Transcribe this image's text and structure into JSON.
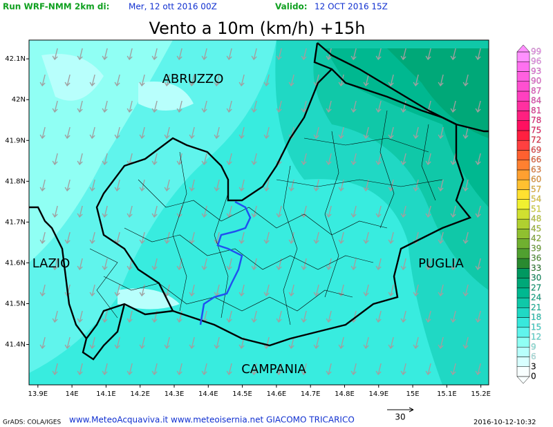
{
  "header": {
    "run_label": "Run WRF-NMM 2km di:",
    "run_date": "Mer, 12 ott 2016 00Z",
    "valid_label": "Valido:",
    "valid_date": "12 OCT 2016 15Z"
  },
  "title": "Vento a 10m (km/h) +15h",
  "map": {
    "lonlim": [
      13.874,
      15.223
    ],
    "latlim": [
      41.301,
      42.146
    ],
    "xticks": [
      {
        "value": 13.9,
        "label": "13.9E"
      },
      {
        "value": 14,
        "label": "14E"
      },
      {
        "value": 14.1,
        "label": "14.1E"
      },
      {
        "value": 14.2,
        "label": "14.2E"
      },
      {
        "value": 14.3,
        "label": "14.3E"
      },
      {
        "value": 14.4,
        "label": "14.4E"
      },
      {
        "value": 14.5,
        "label": "14.5E"
      },
      {
        "value": 14.6,
        "label": "14.6E"
      },
      {
        "value": 14.7,
        "label": "14.7E"
      },
      {
        "value": 14.8,
        "label": "14.8E"
      },
      {
        "value": 14.9,
        "label": "14.9E"
      },
      {
        "value": 15,
        "label": "15E"
      },
      {
        "value": 15.1,
        "label": "15.1E"
      },
      {
        "value": 15.2,
        "label": "15.2E"
      }
    ],
    "yticks": [
      {
        "value": 42.1,
        "label": "42.1N"
      },
      {
        "value": 42,
        "label": "42N"
      },
      {
        "value": 41.9,
        "label": "41.9N"
      },
      {
        "value": 41.8,
        "label": "41.8N"
      },
      {
        "value": 41.7,
        "label": "41.7N"
      },
      {
        "value": 41.6,
        "label": "41.6N"
      },
      {
        "value": 41.5,
        "label": "41.5N"
      },
      {
        "value": 41.4,
        "label": "41.4N"
      }
    ],
    "regions": [
      "ABRUZZO",
      "LAZIO",
      "PUGLIA",
      "CAMPANIA"
    ]
  },
  "colorbar": {
    "levels": [
      0,
      3,
      6,
      9,
      12,
      15,
      18,
      21,
      24,
      27,
      30,
      33,
      36,
      39,
      42,
      45,
      48,
      51,
      54,
      57,
      60,
      63,
      66,
      69,
      72,
      75,
      78,
      81,
      84,
      87,
      90,
      93,
      96,
      99
    ],
    "colors": [
      "#f8ffff",
      "#d8ffff",
      "#b8fffc",
      "#90fff4",
      "#60f4ec",
      "#38e8dc",
      "#20d8c4",
      "#10c8a8",
      "#00b890",
      "#00a878",
      "#009860",
      "#2a8a30",
      "#50a030",
      "#70b030",
      "#90c030",
      "#b0d030",
      "#d0e030",
      "#f0f030",
      "#ffe030",
      "#ffc030",
      "#ffa030",
      "#ff8030",
      "#ff6030",
      "#ff4040",
      "#ff2040",
      "#ff1060",
      "#ff2080",
      "#ff30a0",
      "#ff40c0",
      "#ff50d0",
      "#ff60e0",
      "#ff70f0",
      "#ff90ff"
    ]
  },
  "footer": {
    "credit": "GrADS: COLA/IGES",
    "sites": "www.MeteoAcquaviva.it www.meteoisernia.net GIACOMO TRICARICO",
    "vector_scale": "30",
    "timestamp": "2016-10-12-10:32"
  }
}
